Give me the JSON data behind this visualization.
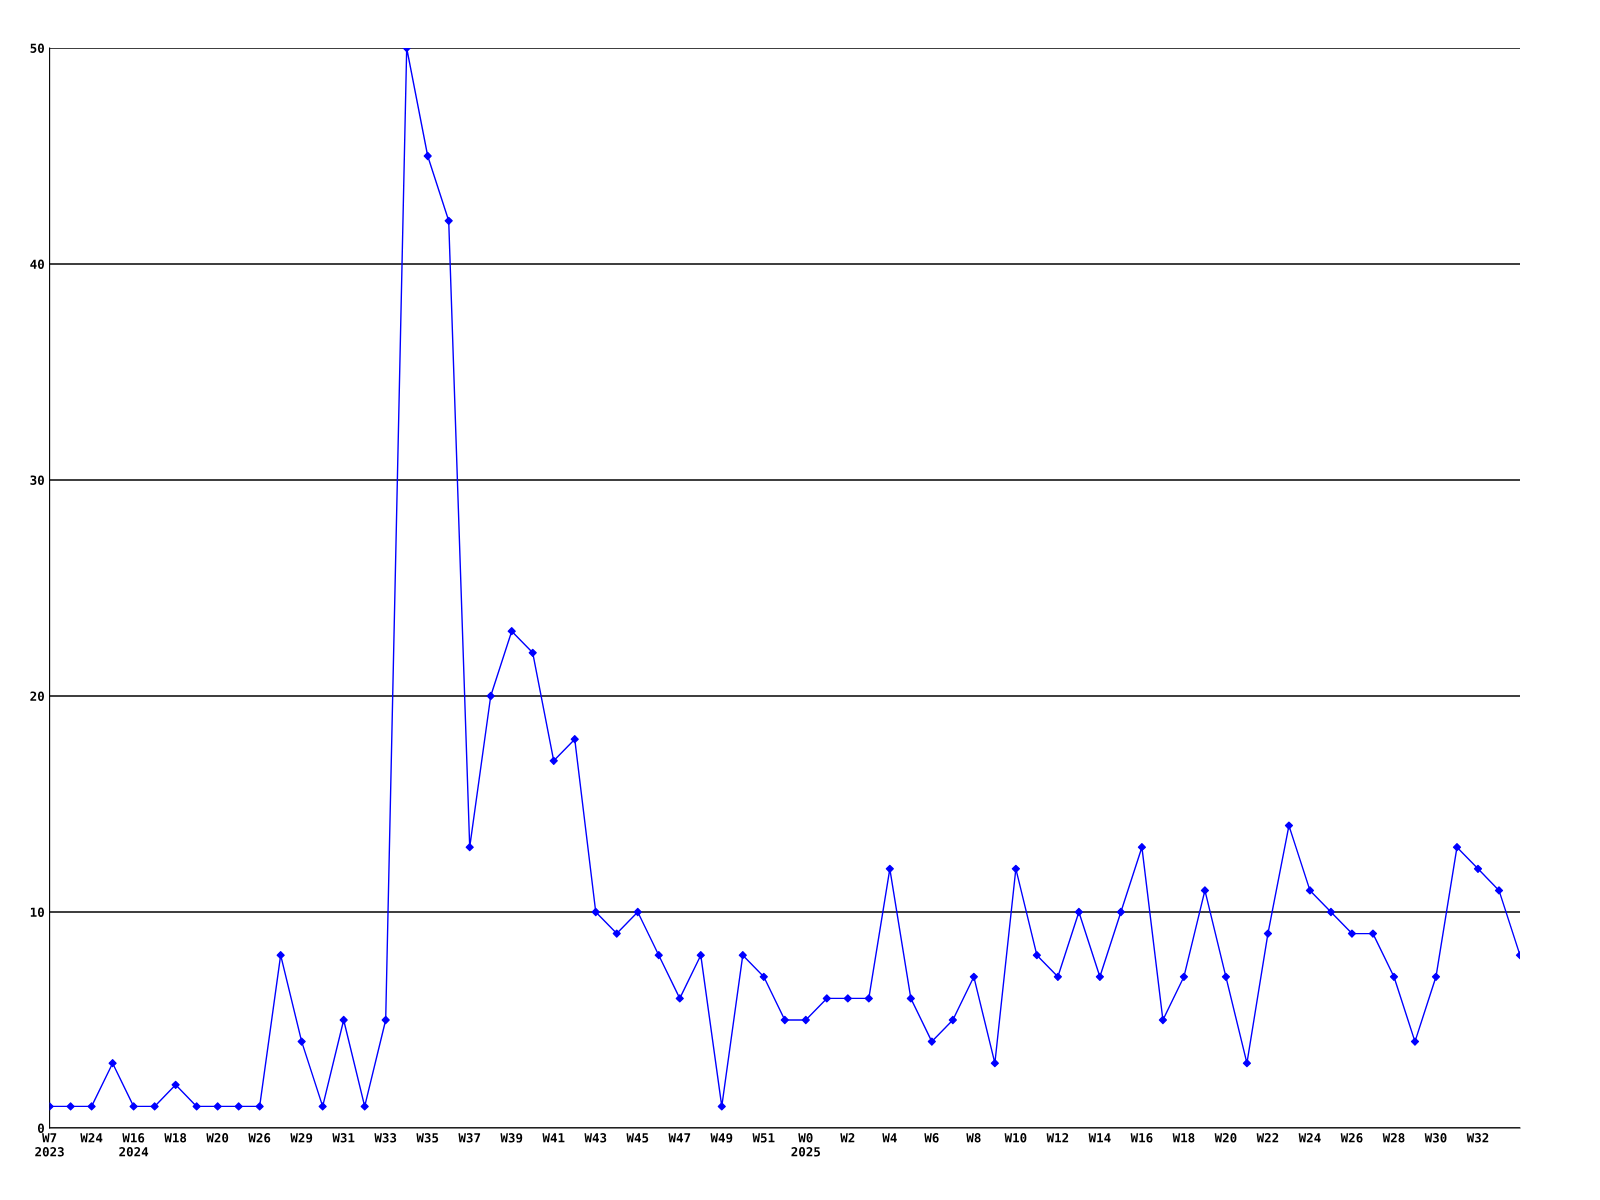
{
  "chart_data": {
    "type": "line",
    "categories": [
      "W7\n2023",
      null,
      "W24",
      null,
      "W16\n2024",
      null,
      "W18",
      null,
      "W20",
      null,
      "W26",
      null,
      "W29",
      null,
      "W31",
      null,
      "W33",
      null,
      "W35",
      null,
      "W37",
      null,
      "W39",
      null,
      "W41",
      null,
      "W43",
      null,
      "W45",
      null,
      "W47",
      null,
      "W49",
      null,
      "W51",
      null,
      "W0\n2025",
      null,
      "W2",
      null,
      "W4",
      null,
      "W6",
      null,
      "W8",
      null,
      "W10",
      null,
      "W12",
      null,
      "W14",
      null,
      "W16",
      null,
      "W18",
      null,
      "W20",
      null,
      "W22",
      null,
      "W24",
      null,
      "W26",
      null,
      "W28",
      null,
      "W30",
      null,
      "W32",
      null,
      null
    ],
    "series": [
      {
        "color": "#0000ff",
        "values": [
          1,
          1,
          1,
          3,
          1,
          1,
          2,
          1,
          1,
          1,
          1,
          8,
          4,
          1,
          5,
          1,
          5,
          50,
          45,
          42,
          13,
          20,
          23,
          22,
          17,
          18,
          10,
          9,
          10,
          8,
          6,
          8,
          1,
          8,
          7,
          5,
          5,
          6,
          6,
          6,
          12,
          6,
          4,
          5,
          7,
          3,
          12,
          8,
          7,
          10,
          7,
          10,
          13,
          5,
          7,
          11,
          7,
          3,
          9,
          14,
          11,
          10,
          9,
          9,
          7,
          4,
          7,
          13,
          12,
          11,
          8
        ]
      }
    ],
    "ylim": [
      0,
      50
    ],
    "yticks": [
      0,
      10,
      20,
      30,
      40,
      50
    ],
    "grid": "y",
    "marker": "diamond",
    "line_style": "solid"
  }
}
